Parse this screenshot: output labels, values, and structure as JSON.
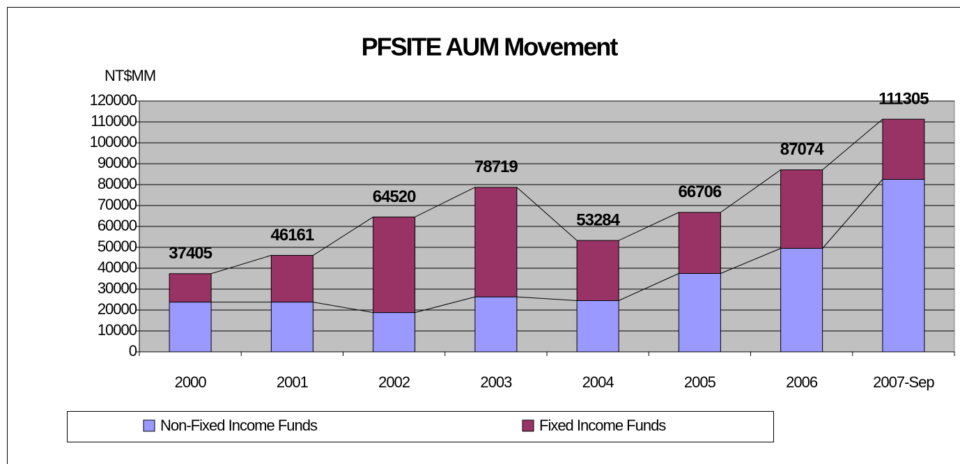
{
  "chart_data": {
    "type": "stacked_bar",
    "title": "PFSITE AUM Movement",
    "y_label": "NT$MM",
    "categories": [
      "2000",
      "2001",
      "2002",
      "2003",
      "2004",
      "2005",
      "2006",
      "2007-Sep"
    ],
    "series": [
      {
        "name": "Non-Fixed Income Funds",
        "color": "#9999ff",
        "values": [
          23800,
          23800,
          18800,
          26300,
          24500,
          37500,
          49500,
          82500
        ]
      },
      {
        "name": "Fixed Income Funds",
        "color": "#993366",
        "values": [
          13605,
          22361,
          45720,
          52419,
          28784,
          29206,
          37574,
          28805
        ]
      }
    ],
    "totals": [
      37405,
      46161,
      64520,
      78719,
      53284,
      66706,
      87074,
      111305
    ],
    "ylim": [
      0,
      120000
    ],
    "yticks": [
      0,
      10000,
      20000,
      30000,
      40000,
      50000,
      60000,
      70000,
      80000,
      90000,
      100000,
      110000,
      120000
    ],
    "grid": true,
    "legend": "bottom",
    "plot_background": "#c0c0c0"
  }
}
